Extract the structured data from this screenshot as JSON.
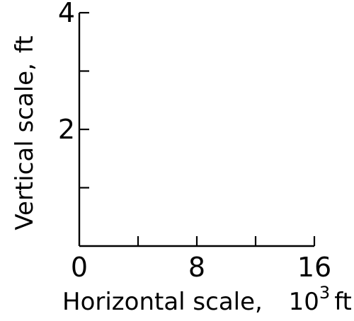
{
  "chart_data": {
    "type": "scatter",
    "title": "",
    "xlabel": "Horizontal scale,",
    "xlabel_units": {
      "base": "10",
      "exponent": "3",
      "unit": "ft"
    },
    "ylabel": "Vertical scale,",
    "ylabel_unit": "ft",
    "xlim": [
      0,
      16
    ],
    "ylim": [
      0,
      4
    ],
    "x_ticks": [
      0,
      4,
      8,
      12,
      16
    ],
    "x_tick_labels": [
      "0",
      "",
      "8",
      "",
      "16"
    ],
    "y_ticks": [
      0,
      1,
      2,
      3,
      4
    ],
    "y_tick_labels": [
      "",
      "",
      "2",
      "",
      "4"
    ],
    "grid": false,
    "series": [],
    "colors": {
      "axis": "#000000",
      "background": "#ffffff"
    }
  }
}
